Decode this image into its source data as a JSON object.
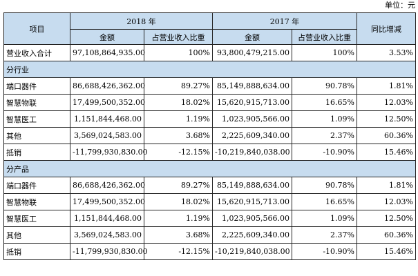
{
  "unit_label": "单位：元",
  "header": {
    "item": "项目",
    "year1": "2018 年",
    "year2": "2017 年",
    "yoy": "同比增减",
    "amount": "金额",
    "ratio": "占营业收入比重"
  },
  "total": {
    "label": "营业收入合计",
    "amt1": "97,108,864,935.00",
    "pct1": "100%",
    "amt2": "93,800,479,215.00",
    "pct2": "100%",
    "yoy": "3.53%"
  },
  "sections": [
    {
      "title": "分行业",
      "rows": [
        {
          "label": "端口器件",
          "amt1": "86,688,426,362.00",
          "pct1": "89.27%",
          "amt2": "85,149,888,634.00",
          "pct2": "90.78%",
          "yoy": "1.81%"
        },
        {
          "label": "智慧物联",
          "amt1": "17,499,500,352.00",
          "pct1": "18.02%",
          "amt2": "15,620,915,713.00",
          "pct2": "16.65%",
          "yoy": "12.03%"
        },
        {
          "label": "智慧医工",
          "amt1": "1,151,844,468.00",
          "pct1": "1.19%",
          "amt2": "1,023,905,566.00",
          "pct2": "1.09%",
          "yoy": "12.50%"
        },
        {
          "label": "其他",
          "amt1": "3,569,024,583.00",
          "pct1": "3.68%",
          "amt2": "2,225,609,340.00",
          "pct2": "2.37%",
          "yoy": "60.36%"
        },
        {
          "label": "抵销",
          "amt1": "-11,799,930,830.00",
          "pct1": "-12.15%",
          "amt2": "-10,219,840,038.00",
          "pct2": "-10.90%",
          "yoy": "15.46%"
        }
      ]
    },
    {
      "title": "分产品",
      "rows": [
        {
          "label": "端口器件",
          "amt1": "86,688,426,362.00",
          "pct1": "89.27%",
          "amt2": "85,149,888,634.00",
          "pct2": "90.78%",
          "yoy": "1.81%"
        },
        {
          "label": "智慧物联",
          "amt1": "17,499,500,352.00",
          "pct1": "18.02%",
          "amt2": "15,620,915,713.00",
          "pct2": "16.65%",
          "yoy": "12.03%"
        },
        {
          "label": "智慧医工",
          "amt1": "1,151,844,468.00",
          "pct1": "1.19%",
          "amt2": "1,023,905,566.00",
          "pct2": "1.09%",
          "yoy": "12.50%"
        },
        {
          "label": "其他",
          "amt1": "3,569,024,583.00",
          "pct1": "3.68%",
          "amt2": "2,225,609,340.00",
          "pct2": "2.37%",
          "yoy": "60.36%"
        },
        {
          "label": "抵销",
          "amt1": "-11,799,930,830.00",
          "pct1": "-12.15%",
          "amt2": "-10,219,840,038.00",
          "pct2": "-10.90%",
          "yoy": "15.46%"
        }
      ]
    }
  ]
}
